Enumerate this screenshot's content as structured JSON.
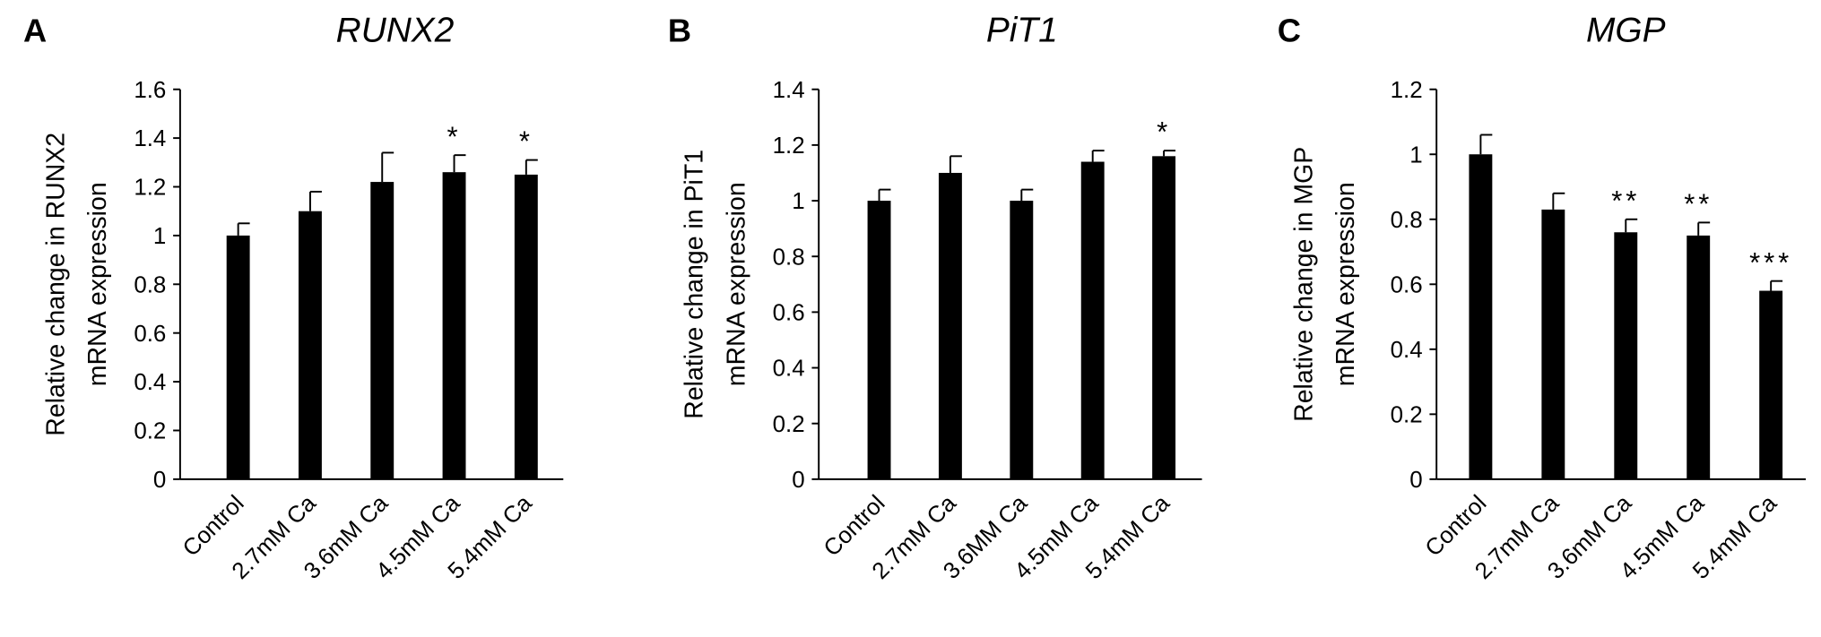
{
  "chart_data": [
    {
      "type": "bar",
      "panel": "A",
      "title": "RUNX2",
      "ylabel": [
        "Relative change in RUNX2",
        "mRNA expression"
      ],
      "categories": [
        "Control",
        "2.7mM Ca",
        "3.6mM Ca",
        "4.5mM Ca",
        "5.4mM Ca"
      ],
      "values": [
        1.0,
        1.1,
        1.22,
        1.26,
        1.25
      ],
      "errors": [
        0.05,
        0.08,
        0.12,
        0.07,
        0.06
      ],
      "annotations": [
        null,
        null,
        null,
        "*",
        "*"
      ],
      "color": "#000000",
      "ylim": [
        0,
        1.6
      ],
      "yticks": [
        0,
        0.2,
        0.4,
        0.6,
        0.8,
        1,
        1.2,
        1.4,
        1.6
      ]
    },
    {
      "type": "bar",
      "panel": "B",
      "title": "PiT1",
      "ylabel": [
        "Relative change in PiT1",
        "mRNA expression"
      ],
      "categories": [
        "Control",
        "2.7mM Ca",
        "3.6MM Ca",
        "4.5mM Ca",
        "5.4mM Ca"
      ],
      "values": [
        1.0,
        1.1,
        1.0,
        1.14,
        1.16
      ],
      "errors": [
        0.04,
        0.06,
        0.04,
        0.04,
        0.02
      ],
      "annotations": [
        null,
        null,
        null,
        null,
        "*"
      ],
      "color": "#000000",
      "ylim": [
        0,
        1.4
      ],
      "yticks": [
        0,
        0.2,
        0.4,
        0.6,
        0.8,
        1,
        1.2,
        1.4
      ]
    },
    {
      "type": "bar",
      "panel": "C",
      "title": "MGP",
      "ylabel": [
        "Relative change in MGP",
        "mRNA expression"
      ],
      "categories": [
        "Control",
        "2.7mM Ca",
        "3.6mM Ca",
        "4.5mM Ca",
        "5.4mM Ca"
      ],
      "values": [
        1.0,
        0.83,
        0.76,
        0.75,
        0.58
      ],
      "errors": [
        0.06,
        0.05,
        0.04,
        0.04,
        0.03
      ],
      "annotations": [
        null,
        null,
        "**",
        "**",
        "***"
      ],
      "color": "#000000",
      "ylim": [
        0,
        1.2
      ],
      "yticks": [
        0,
        0.2,
        0.4,
        0.6,
        0.8,
        1,
        1.2
      ]
    }
  ]
}
